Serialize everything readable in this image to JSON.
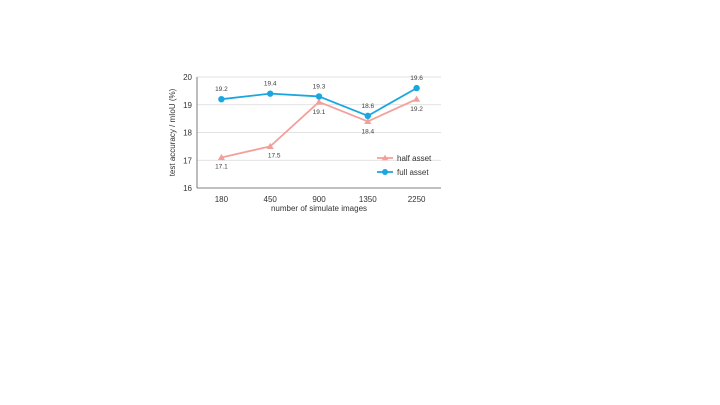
{
  "chart_data": {
    "type": "line",
    "xlabel": "number of simulate images",
    "ylabel": "test accuracy / mIoU (%)",
    "categories": [
      "180",
      "450",
      "900",
      "1350",
      "2250"
    ],
    "ylim": [
      16,
      20
    ],
    "yticks": [
      16,
      17,
      18,
      19,
      20
    ],
    "grid": "horizontal",
    "legend_position": "bottom-right",
    "series": [
      {
        "name": "half asset",
        "values": [
          17.1,
          17.5,
          19.1,
          18.4,
          19.2
        ],
        "labels": [
          "17.1",
          "17.5",
          "19.1",
          "18.4",
          "19.2"
        ],
        "color": "#F4A09A",
        "marker": "triangle"
      },
      {
        "name": "full asset",
        "values": [
          19.2,
          19.4,
          19.3,
          18.6,
          19.6
        ],
        "labels": [
          "19.2",
          "19.4",
          "19.3",
          "18.6",
          "19.6"
        ],
        "color": "#1AA7E0",
        "marker": "circle"
      }
    ]
  }
}
